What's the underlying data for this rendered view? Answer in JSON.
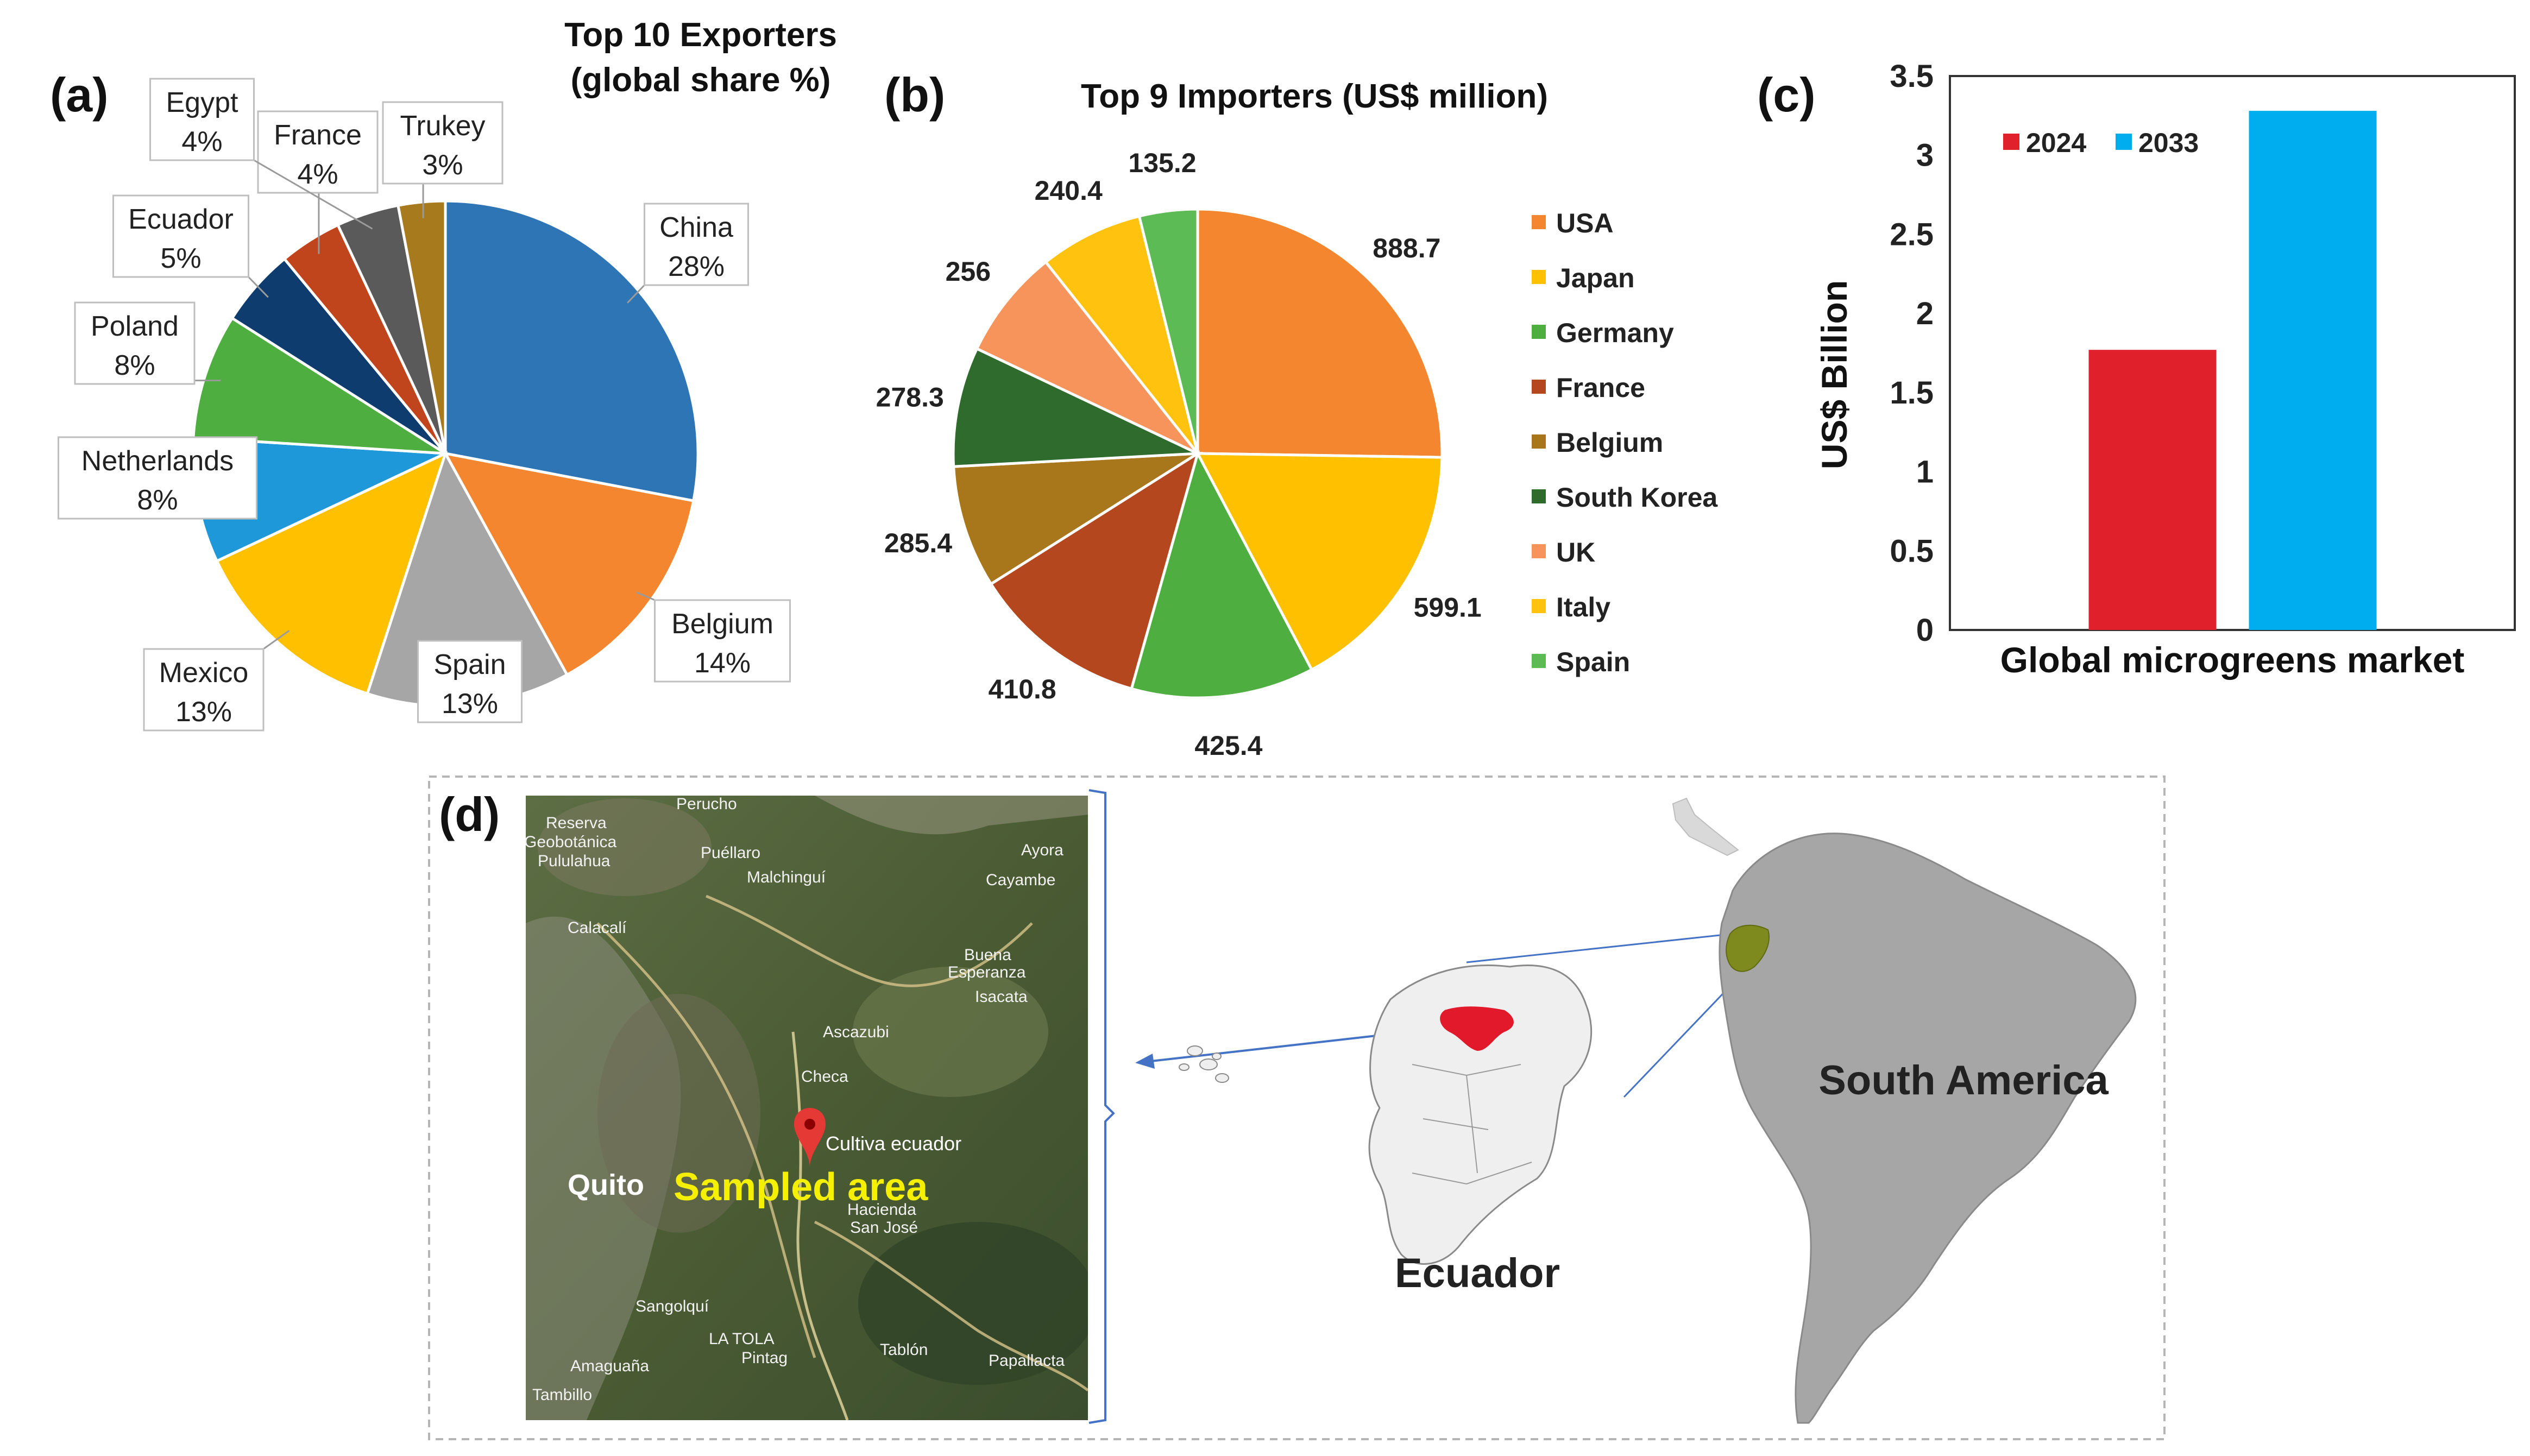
{
  "panels": {
    "a": "(a)",
    "b": "(b)",
    "c": "(c)",
    "d": "(d)"
  },
  "chart_data": [
    {
      "type": "pie",
      "id": "exporters",
      "title_line1": "Top 10 Exporters",
      "title_line2": "(global share %)",
      "slices": [
        {
          "name": "China",
          "value": 28,
          "label": "28%",
          "color": "#2E75B6"
        },
        {
          "name": "Belgium",
          "value": 14,
          "label": "14%",
          "color": "#F4862F"
        },
        {
          "name": "Spain",
          "value": 13,
          "label": "13%",
          "color": "#A6A6A6"
        },
        {
          "name": "Mexico",
          "value": 13,
          "label": "13%",
          "color": "#FFC000"
        },
        {
          "name": "Netherlands",
          "value": 8,
          "label": "8%",
          "color": "#1F98DA"
        },
        {
          "name": "Poland",
          "value": 8,
          "label": "8%",
          "color": "#4EAE40"
        },
        {
          "name": "Ecuador",
          "value": 5,
          "label": "5%",
          "color": "#0F3C6E"
        },
        {
          "name": "France",
          "value": 4,
          "label": "4%",
          "color": "#C0441C"
        },
        {
          "name": "Egypt",
          "value": 4,
          "label": "4%",
          "color": "#5A5A5A"
        },
        {
          "name": "Trukey",
          "value": 3,
          "label": "3%",
          "color": "#A87A1E"
        }
      ]
    },
    {
      "type": "pie",
      "id": "importers",
      "title": "Top 9 Importers  (US$ million)",
      "slices": [
        {
          "name": "USA",
          "value": 888.7,
          "label": "888.7",
          "color": "#F4862F"
        },
        {
          "name": "Japan",
          "value": 599.1,
          "label": "599.1",
          "color": "#FFC000"
        },
        {
          "name": "Germany",
          "value": 425.4,
          "label": "425.4",
          "color": "#4EAE40"
        },
        {
          "name": "France",
          "value": 410.8,
          "label": "410.8",
          "color": "#B5471F"
        },
        {
          "name": "Belgium",
          "value": 285.4,
          "label": "285.4",
          "color": "#A8771C"
        },
        {
          "name": "South Korea",
          "value": 278.3,
          "label": "278.3",
          "color": "#2E6B2D"
        },
        {
          "name": "UK",
          "value": 256,
          "label": "256",
          "color": "#F7945B"
        },
        {
          "name": "Italy",
          "value": 240.4,
          "label": "240.4",
          "color": "#FFC20E"
        },
        {
          "name": "Spain",
          "value": 135.2,
          "label": "135.2",
          "color": "#5DBB55"
        }
      ]
    },
    {
      "type": "bar",
      "id": "market",
      "categories": [
        "Global  microgreens  market"
      ],
      "series": [
        {
          "name": "2024",
          "values": [
            1.77
          ],
          "color": "#E0202A"
        },
        {
          "name": "2033",
          "values": [
            3.28
          ],
          "color": "#00AEEF"
        }
      ],
      "ylabel": "US$ Billion",
      "ylim": [
        0,
        3.5
      ],
      "yticks": [
        {
          "value": 0,
          "label": "0"
        },
        {
          "value": 0.5,
          "label": "0.5"
        },
        {
          "value": 1,
          "label": "1"
        },
        {
          "value": 1.5,
          "label": "1.5"
        },
        {
          "value": 2,
          "label": "2"
        },
        {
          "value": 2.5,
          "label": "2.5"
        },
        {
          "value": 3,
          "label": "3"
        },
        {
          "value": 3.5,
          "label": "3.5"
        }
      ],
      "legend_position": "top-left"
    }
  ],
  "map": {
    "sampled_area": "Sampled area",
    "quito": "Quito",
    "cultiva": "Cultiva ecuador",
    "ecuador": "Ecuador",
    "south_america": "South America",
    "places": [
      "Perucho",
      "Reserva",
      "Geobotánica",
      "Pululahua",
      "Puéllaro",
      "Malchinguí",
      "Ayora",
      "Cayambe",
      "Calacalí",
      "Buena",
      "Esperanza",
      "Isacata",
      "Ascazubi",
      "Checa",
      "Hacienda",
      "San José",
      "Sangolquí",
      "LA TOLA",
      "Pintag",
      "Tablón",
      "Papallacta",
      "Amaguaña",
      "Tambillo"
    ]
  }
}
